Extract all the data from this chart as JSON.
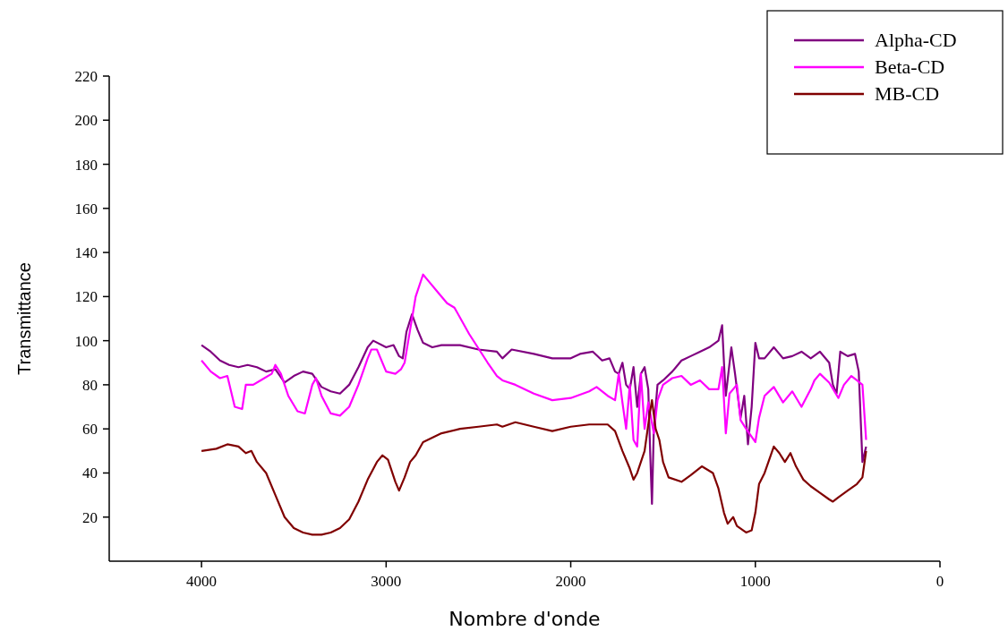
{
  "chart_data": {
    "type": "line",
    "xlabel": "Nombre d'onde",
    "ylabel": "Transmittance",
    "xlim": [
      4500,
      0
    ],
    "ylim": [
      0,
      220
    ],
    "xticks": [
      4000,
      3000,
      2000,
      1000,
      0
    ],
    "yticks": [
      20,
      40,
      60,
      80,
      100,
      120,
      140,
      160,
      180,
      200,
      220
    ],
    "grid": false,
    "legend": "top right",
    "marker": "none",
    "line_style": "solid",
    "series": [
      {
        "name": "Alpha-CD",
        "color": "#800080",
        "x": [
          4000,
          3950,
          3900,
          3850,
          3800,
          3750,
          3700,
          3650,
          3600,
          3550,
          3500,
          3450,
          3400,
          3350,
          3300,
          3250,
          3200,
          3150,
          3100,
          3070,
          3000,
          2960,
          2930,
          2910,
          2890,
          2860,
          2830,
          2800,
          2750,
          2700,
          2600,
          2500,
          2400,
          2370,
          2320,
          2200,
          2100,
          2000,
          1950,
          1880,
          1830,
          1790,
          1760,
          1740,
          1720,
          1700,
          1680,
          1660,
          1640,
          1620,
          1600,
          1580,
          1570,
          1560,
          1550,
          1530,
          1500,
          1450,
          1430,
          1400,
          1350,
          1300,
          1250,
          1200,
          1180,
          1170,
          1160,
          1130,
          1110,
          1080,
          1060,
          1040,
          1020,
          1000,
          980,
          950,
          900,
          850,
          800,
          750,
          700,
          650,
          600,
          580,
          560,
          540,
          500,
          460,
          440,
          420,
          400
        ],
        "values": [
          98,
          95,
          91,
          89,
          88,
          89,
          88,
          86,
          87,
          81,
          84,
          86,
          85,
          79,
          77,
          76,
          80,
          88,
          97,
          100,
          97,
          98,
          93,
          92,
          104,
          112,
          105,
          99,
          97,
          98,
          98,
          96,
          95,
          92,
          96,
          94,
          92,
          92,
          94,
          95,
          91,
          92,
          86,
          85,
          90,
          80,
          78,
          88,
          70,
          85,
          88,
          78,
          50,
          26,
          60,
          80,
          82,
          86,
          88,
          91,
          93,
          95,
          97,
          100,
          107,
          90,
          75,
          97,
          85,
          65,
          75,
          53,
          70,
          99,
          92,
          92,
          97,
          92,
          93,
          95,
          92,
          95,
          90,
          80,
          76,
          95,
          93,
          94,
          86,
          45,
          52
        ]
      },
      {
        "name": "Beta-CD",
        "color": "#ff00ff",
        "x": [
          4000,
          3950,
          3900,
          3860,
          3820,
          3780,
          3760,
          3720,
          3680,
          3620,
          3600,
          3570,
          3530,
          3480,
          3440,
          3400,
          3380,
          3350,
          3300,
          3250,
          3200,
          3150,
          3100,
          3080,
          3050,
          3000,
          2950,
          2920,
          2900,
          2870,
          2840,
          2800,
          2770,
          2720,
          2670,
          2630,
          2550,
          2450,
          2400,
          2370,
          2300,
          2200,
          2100,
          2000,
          1900,
          1860,
          1800,
          1760,
          1740,
          1720,
          1700,
          1680,
          1660,
          1640,
          1620,
          1600,
          1580,
          1550,
          1530,
          1500,
          1450,
          1400,
          1350,
          1300,
          1250,
          1200,
          1180,
          1160,
          1140,
          1100,
          1080,
          1050,
          1000,
          980,
          950,
          900,
          850,
          800,
          750,
          700,
          680,
          650,
          600,
          550,
          520,
          480,
          450,
          420,
          400
        ],
        "values": [
          91,
          86,
          83,
          84,
          70,
          69,
          80,
          80,
          82,
          85,
          89,
          85,
          75,
          68,
          67,
          80,
          83,
          75,
          67,
          66,
          70,
          80,
          92,
          96,
          96,
          86,
          85,
          87,
          90,
          105,
          120,
          130,
          127,
          122,
          117,
          115,
          103,
          90,
          84,
          82,
          80,
          76,
          73,
          74,
          77,
          79,
          75,
          73,
          85,
          72,
          60,
          80,
          55,
          52,
          85,
          60,
          72,
          58,
          73,
          80,
          83,
          84,
          80,
          82,
          78,
          78,
          88,
          58,
          76,
          80,
          64,
          60,
          54,
          65,
          75,
          79,
          72,
          77,
          70,
          78,
          82,
          85,
          81,
          74,
          80,
          84,
          82,
          80,
          55
        ]
      },
      {
        "name": "MB-CD",
        "color": "#800000",
        "x": [
          4000,
          3920,
          3860,
          3800,
          3760,
          3730,
          3700,
          3650,
          3600,
          3550,
          3500,
          3450,
          3400,
          3350,
          3300,
          3250,
          3200,
          3150,
          3100,
          3050,
          3020,
          2990,
          2950,
          2930,
          2900,
          2870,
          2840,
          2800,
          2700,
          2600,
          2500,
          2400,
          2370,
          2300,
          2200,
          2100,
          2000,
          1900,
          1800,
          1760,
          1720,
          1680,
          1660,
          1640,
          1600,
          1570,
          1560,
          1540,
          1520,
          1500,
          1470,
          1400,
          1350,
          1290,
          1230,
          1200,
          1170,
          1150,
          1120,
          1100,
          1050,
          1020,
          1000,
          980,
          950,
          900,
          870,
          840,
          810,
          780,
          740,
          700,
          650,
          600,
          580,
          550,
          500,
          450,
          420,
          400
        ],
        "values": [
          50,
          51,
          53,
          52,
          49,
          50,
          45,
          40,
          30,
          20,
          15,
          13,
          12,
          12,
          13,
          15,
          19,
          27,
          37,
          45,
          48,
          46,
          36,
          32,
          38,
          45,
          48,
          54,
          58,
          60,
          61,
          62,
          61,
          63,
          61,
          59,
          61,
          62,
          62,
          59,
          50,
          42,
          37,
          40,
          50,
          68,
          73,
          60,
          55,
          45,
          38,
          36,
          39,
          43,
          40,
          33,
          22,
          17,
          20,
          16,
          13,
          14,
          22,
          35,
          40,
          52,
          49,
          45,
          49,
          43,
          37,
          34,
          31,
          28,
          27,
          29,
          32,
          35,
          38,
          50
        ]
      }
    ]
  }
}
